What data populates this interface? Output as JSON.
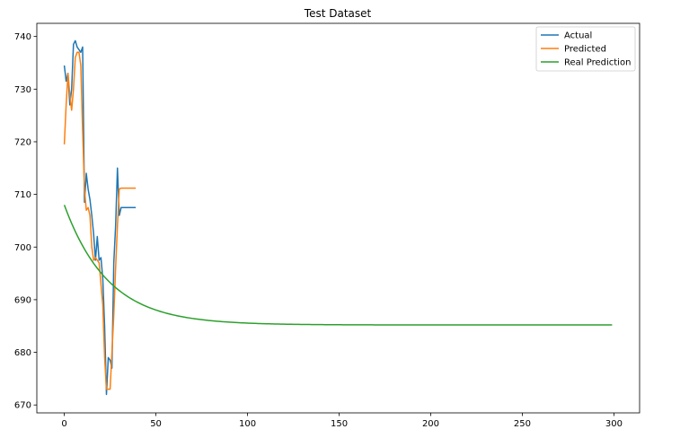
{
  "chart_data": {
    "type": "line",
    "title": "Test Dataset",
    "xlabel": "",
    "ylabel": "",
    "xlim": [
      -15,
      314
    ],
    "ylim": [
      668.5,
      742.5
    ],
    "xticks": [
      0,
      50,
      100,
      150,
      200,
      250,
      300
    ],
    "yticks": [
      670,
      680,
      690,
      700,
      710,
      720,
      730,
      740
    ],
    "grid": false,
    "legend_position": "top-right",
    "series": [
      {
        "name": "Actual",
        "color": "#1f77b4",
        "x": [
          0,
          1,
          2,
          3,
          4,
          5,
          6,
          7,
          8,
          9,
          10,
          11,
          12,
          13,
          14,
          15,
          16,
          17,
          18,
          19,
          20,
          21,
          22,
          23,
          24,
          25,
          26,
          27,
          28,
          29,
          30,
          31,
          32,
          33,
          34,
          35,
          36,
          37,
          38,
          39
        ],
        "y": [
          734.5,
          731.5,
          733,
          727,
          730,
          738.5,
          739.2,
          738,
          737.5,
          737,
          738,
          708.5,
          714,
          711,
          709,
          706,
          702.5,
          697.5,
          702,
          697.5,
          698,
          694,
          685,
          672,
          679,
          678.5,
          677,
          697,
          704,
          715,
          706,
          707.5,
          707.5,
          707.5,
          707.5,
          707.5,
          707.5,
          707.5,
          707.5,
          707.5
        ]
      },
      {
        "name": "Predicted",
        "color": "#ff7f0e",
        "x": [
          0,
          1,
          2,
          3,
          4,
          5,
          6,
          7,
          8,
          9,
          10,
          11,
          12,
          13,
          14,
          15,
          16,
          17,
          18,
          19,
          20,
          21,
          22,
          23,
          24,
          25,
          26,
          27,
          28,
          29,
          30,
          31,
          32,
          33,
          34,
          35,
          36,
          37,
          38,
          39
        ],
        "y": [
          719.5,
          727,
          733,
          729,
          726,
          730,
          736,
          737,
          737,
          734.5,
          722,
          711,
          707,
          707.5,
          706,
          700,
          697.5,
          698,
          697.5,
          697,
          693,
          689,
          679,
          673,
          673,
          673,
          680,
          687,
          696,
          704,
          711,
          711.2,
          711.2,
          711.2,
          711.2,
          711.2,
          711.2,
          711.2,
          711.2,
          711.2
        ]
      },
      {
        "name": "Real Prediction",
        "color": "#2ca02c",
        "model": {
          "start": 708.0,
          "end": 685.2,
          "tau": 24,
          "x0": 0,
          "x1": 299
        }
      }
    ]
  }
}
